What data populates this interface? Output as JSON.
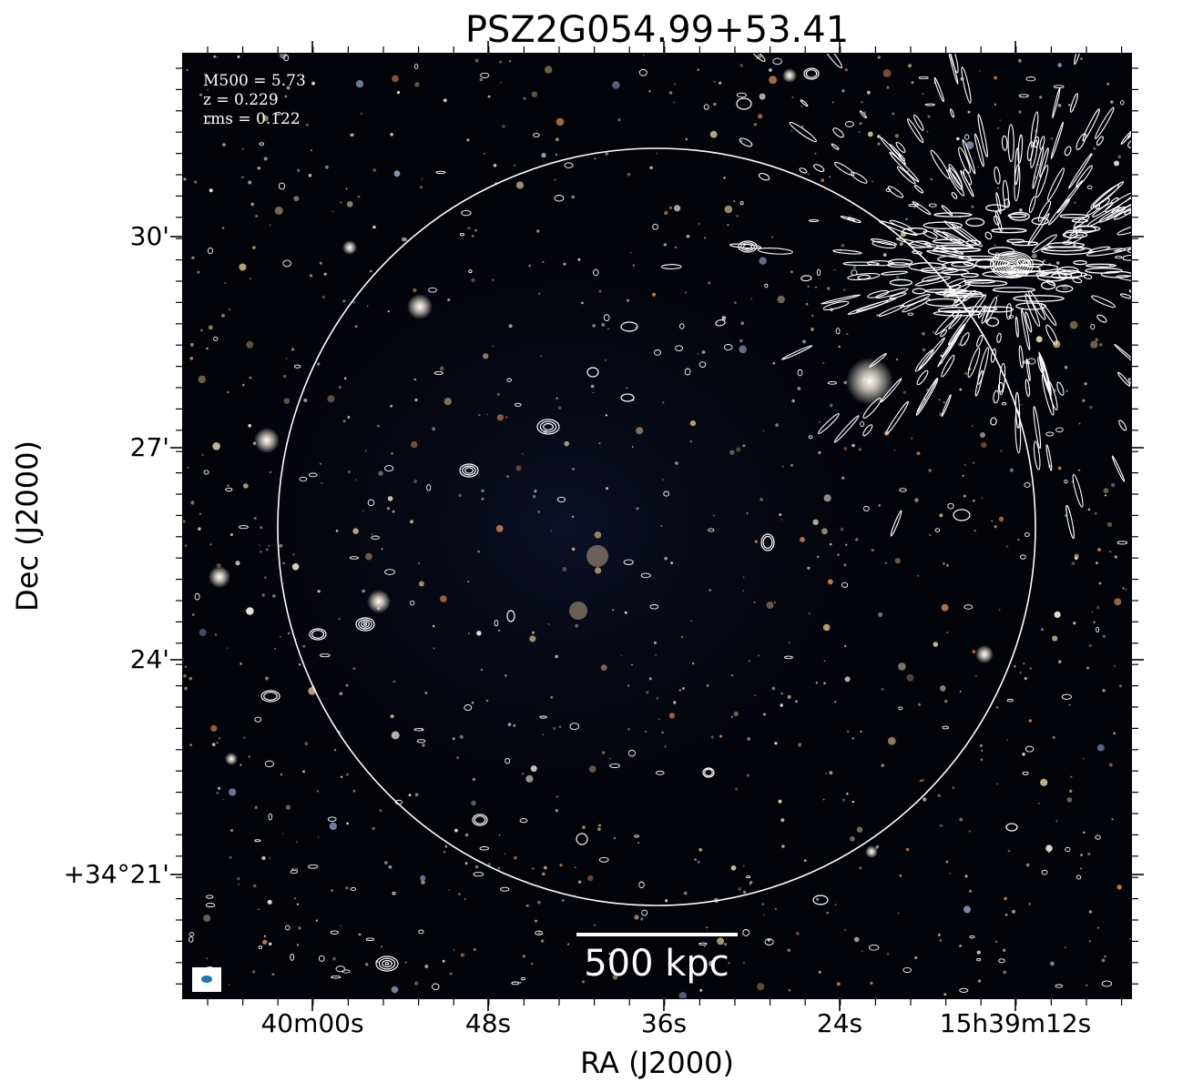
{
  "title": "PSZ2G054.99+53.41",
  "info": {
    "mass": "M500 = 5.73",
    "redshift": "z = 0.229",
    "rms": "rms = 0.122"
  },
  "scale_bar": {
    "label": "500 kpc"
  },
  "axes": {
    "xlabel": "RA (J2000)",
    "ylabel": "Dec (J2000)",
    "xticks": [
      "40m00s",
      "48s",
      "36s",
      "24s",
      "15h39m12s"
    ],
    "yticks": [
      "30'",
      "27'",
      "24'",
      "+34°21'"
    ]
  },
  "colors": {
    "contour": "#ffffff",
    "beam": "#1f77b4",
    "sky": "#03040a"
  }
}
